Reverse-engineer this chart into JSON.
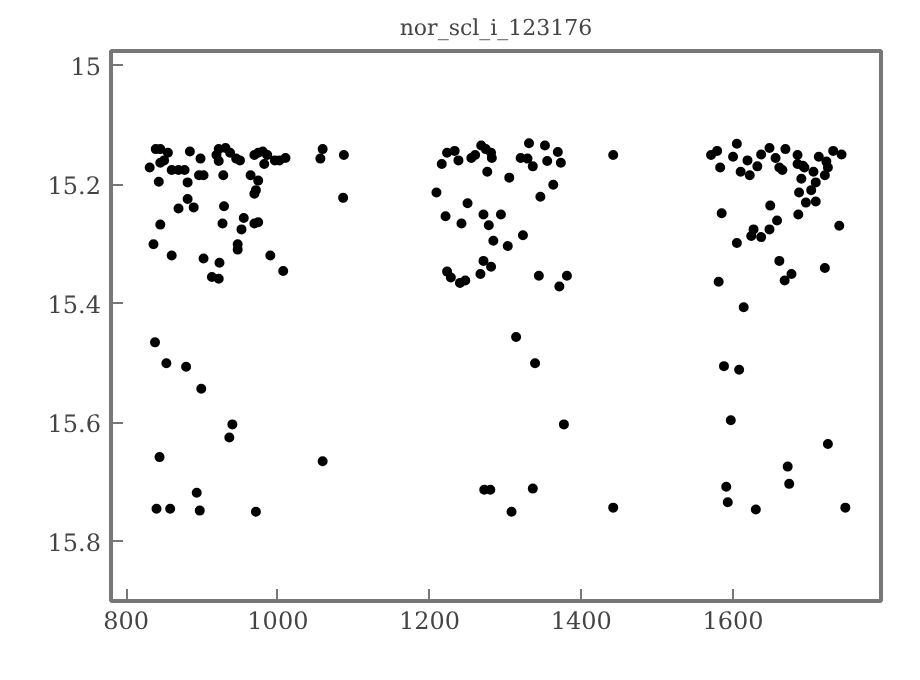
{
  "chart_data": {
    "type": "scatter",
    "title": "nor_scl_i_123176",
    "marker": "circle",
    "grid": false,
    "xlim": [
      780,
      1795
    ],
    "ylim": [
      15.9,
      14.975
    ],
    "xticks": [
      800,
      1000,
      1200,
      1400,
      1600
    ],
    "yticks": [
      15,
      15.2,
      15.4,
      15.6,
      15.8
    ],
    "series": [
      {
        "color": "#000000",
        "x": [
          831,
          839,
          845,
          845,
          850,
          843,
          855,
          860,
          869,
          877,
          881,
          884,
          898,
          896,
          902,
          922,
          931,
          937,
          919,
          922,
          928,
          945,
          950,
          964,
          969,
          974,
          980,
          982,
          974,
          969,
          971,
          986,
          996,
          1002,
          1010,
          1056,
          1059,
          1087,
          1086,
          845,
          869,
          881,
          889,
          929,
          927,
          955,
          952,
          836,
          860,
          902,
          913,
          922,
          923,
          947,
          947,
          969,
          974,
          990,
          1007,
          838,
          853,
          879,
          899,
          940,
          936,
          844,
          1059,
          893,
          840,
          858,
          897,
          971,
          1223,
          1233,
          1216,
          1238,
          1255,
          1260,
          1268,
          1274,
          1281,
          1282,
          1276,
          1305,
          1320,
          1331,
          1329,
          1336,
          1352,
          1355,
          1369,
          1373,
          1442,
          1209,
          1250,
          1221,
          1242,
          1271,
          1278,
          1294,
          1346,
          1363,
          1284,
          1303,
          1323,
          1271,
          1281,
          1267,
          1223,
          1228,
          1240,
          1247,
          1344,
          1371,
          1381,
          1314,
          1339,
          1377,
          1272,
          1280,
          1336,
          1308,
          1442,
          1571,
          1579,
          1583,
          1600,
          1605,
          1610,
          1619,
          1622,
          1632,
          1637,
          1648,
          1656,
          1661,
          1665,
          1669,
          1685,
          1685,
          1692,
          1690,
          1694,
          1706,
          1709,
          1703,
          1687,
          1713,
          1723,
          1725,
          1721,
          1732,
          1743,
          1696,
          1709,
          1649,
          1585,
          1658,
          1686,
          1627,
          1624,
          1637,
          1648,
          1605,
          1740,
          1661,
          1668,
          1677,
          1721,
          1581,
          1614,
          1588,
          1608,
          1597,
          1725,
          1672,
          1674,
          1591,
          1593,
          1630,
          1748
        ],
        "values": [
          15.171,
          15.14,
          15.14,
          15.163,
          15.159,
          15.195,
          15.146,
          15.175,
          15.175,
          15.175,
          15.196,
          15.144,
          15.156,
          15.184,
          15.184,
          15.14,
          15.138,
          15.146,
          15.15,
          15.16,
          15.184,
          15.156,
          15.159,
          15.184,
          15.15,
          15.146,
          15.144,
          15.165,
          15.193,
          15.215,
          15.209,
          15.15,
          15.159,
          15.159,
          15.155,
          15.156,
          15.14,
          15.15,
          15.222,
          15.267,
          15.24,
          15.224,
          15.238,
          15.236,
          15.265,
          15.256,
          15.275,
          15.3,
          15.319,
          15.324,
          15.355,
          15.358,
          15.331,
          15.3,
          15.309,
          15.265,
          15.263,
          15.319,
          15.345,
          15.465,
          15.5,
          15.506,
          15.543,
          15.603,
          15.625,
          15.658,
          15.665,
          15.718,
          15.745,
          15.745,
          15.748,
          15.75,
          15.146,
          15.143,
          15.165,
          15.159,
          15.155,
          15.15,
          15.134,
          15.14,
          15.146,
          15.155,
          15.178,
          15.188,
          15.155,
          15.13,
          15.156,
          15.169,
          15.134,
          15.16,
          15.145,
          15.163,
          15.15,
          15.213,
          15.231,
          15.253,
          15.265,
          15.25,
          15.268,
          15.25,
          15.22,
          15.2,
          15.294,
          15.303,
          15.285,
          15.328,
          15.338,
          15.35,
          15.346,
          15.356,
          15.365,
          15.361,
          15.353,
          15.371,
          15.353,
          15.456,
          15.5,
          15.603,
          15.713,
          15.713,
          15.711,
          15.75,
          15.743,
          15.15,
          15.143,
          15.171,
          15.153,
          15.131,
          15.178,
          15.159,
          15.184,
          15.169,
          15.149,
          15.138,
          15.155,
          15.171,
          15.175,
          15.14,
          15.15,
          15.165,
          15.168,
          15.19,
          15.171,
          15.178,
          15.196,
          15.209,
          15.213,
          15.153,
          15.161,
          15.171,
          15.184,
          15.143,
          15.149,
          15.23,
          15.228,
          15.235,
          15.248,
          15.26,
          15.25,
          15.275,
          15.286,
          15.288,
          15.275,
          15.298,
          15.269,
          15.328,
          15.361,
          15.35,
          15.34,
          15.363,
          15.406,
          15.505,
          15.511,
          15.596,
          15.636,
          15.674,
          15.703,
          15.708,
          15.734,
          15.746,
          15.743
        ]
      }
    ]
  }
}
